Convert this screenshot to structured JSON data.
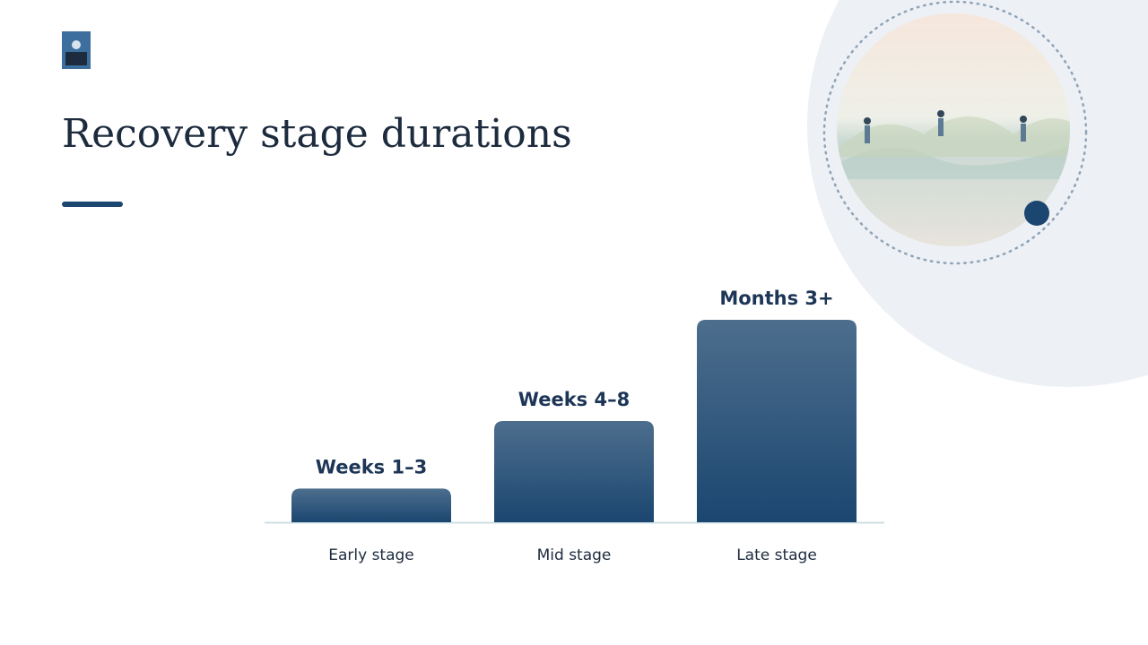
{
  "chart_data": {
    "type": "bar",
    "title": "Recovery stage durations",
    "categories": [
      "Early stage",
      "Mid stage",
      "Late stage"
    ],
    "values": [
      2,
      6,
      12
    ],
    "value_labels": [
      "Weeks 1–3",
      "Weeks 4–8",
      "Months 3+"
    ],
    "color": "#1b4670"
  }
}
